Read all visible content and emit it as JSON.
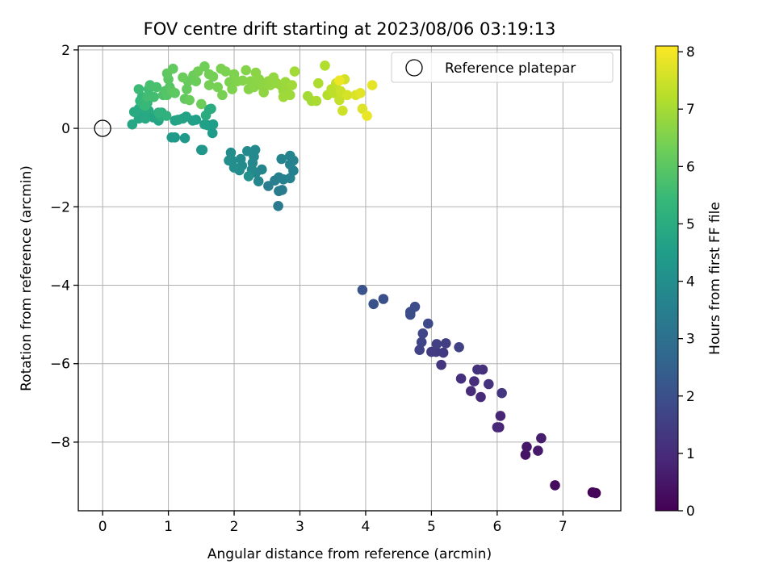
{
  "chart_data": {
    "type": "scatter",
    "title": "FOV centre drift starting at 2023/08/06 03:19:13",
    "xlabel": "Angular distance from reference (arcmin)",
    "ylabel": "Rotation from reference (arcmin)",
    "colorbar_label": "Hours from first FF file",
    "colormap": "viridis",
    "xlim": [
      -0.37,
      7.88
    ],
    "ylim": [
      -9.75,
      2.1
    ],
    "clim": [
      0,
      8.1
    ],
    "x_ticks": [
      0,
      1,
      2,
      3,
      4,
      5,
      6,
      7
    ],
    "y_ticks": [
      -8,
      -6,
      -4,
      -2,
      0,
      2
    ],
    "colorbar_ticks": [
      0,
      1,
      2,
      3,
      4,
      5,
      6,
      7,
      8
    ],
    "grid": true,
    "legend": {
      "position": "top-right",
      "label": "Reference platepar"
    },
    "reference": {
      "x": 0,
      "y": 0,
      "color": "#000000"
    },
    "points": [
      [
        7.5,
        -9.3,
        0.05
      ],
      [
        7.45,
        -9.28,
        0.1
      ],
      [
        6.88,
        -9.1,
        0.25
      ],
      [
        6.43,
        -8.32,
        0.4
      ],
      [
        6.45,
        -8.12,
        0.5
      ],
      [
        6.62,
        -8.22,
        0.55
      ],
      [
        6.67,
        -7.9,
        0.65
      ],
      [
        6.03,
        -7.62,
        0.8
      ],
      [
        6.05,
        -7.33,
        0.85
      ],
      [
        6.0,
        -7.62,
        0.9
      ],
      [
        5.75,
        -6.85,
        0.95
      ],
      [
        5.6,
        -6.7,
        1.0
      ],
      [
        5.65,
        -6.45,
        1.05
      ],
      [
        5.45,
        -6.38,
        1.1
      ],
      [
        5.78,
        -6.15,
        1.12
      ],
      [
        5.7,
        -6.15,
        1.18
      ],
      [
        5.87,
        -6.52,
        1.2
      ],
      [
        6.07,
        -6.75,
        1.25
      ],
      [
        5.15,
        -6.03,
        1.3
      ],
      [
        5.07,
        -5.7,
        1.35
      ],
      [
        5.18,
        -5.72,
        1.4
      ],
      [
        5.0,
        -5.7,
        1.45
      ],
      [
        5.22,
        -5.48,
        1.5
      ],
      [
        5.08,
        -5.5,
        1.55
      ],
      [
        5.42,
        -5.58,
        1.6
      ],
      [
        4.82,
        -5.65,
        1.65
      ],
      [
        4.85,
        -5.45,
        1.7
      ],
      [
        4.87,
        -5.23,
        1.75
      ],
      [
        4.95,
        -4.98,
        1.8
      ],
      [
        4.68,
        -4.68,
        1.85
      ],
      [
        4.75,
        -4.55,
        1.9
      ],
      [
        4.68,
        -4.75,
        1.95
      ],
      [
        4.27,
        -4.35,
        2.0
      ],
      [
        4.12,
        -4.48,
        2.05
      ],
      [
        3.95,
        -4.12,
        2.1
      ],
      [
        2.67,
        -1.98,
        3.3
      ],
      [
        2.68,
        -1.6,
        3.35
      ],
      [
        2.73,
        -1.57,
        3.38
      ],
      [
        2.62,
        -1.33,
        3.42
      ],
      [
        2.52,
        -1.47,
        3.45
      ],
      [
        2.68,
        -1.25,
        3.5
      ],
      [
        2.75,
        -1.3,
        3.52
      ],
      [
        2.85,
        -1.27,
        3.55
      ],
      [
        2.9,
        -1.08,
        3.58
      ],
      [
        2.85,
        -0.92,
        3.6
      ],
      [
        2.9,
        -0.82,
        3.62
      ],
      [
        2.85,
        -0.7,
        3.65
      ],
      [
        2.72,
        -0.78,
        3.68
      ],
      [
        2.42,
        -1.05,
        3.7
      ],
      [
        2.37,
        -1.35,
        3.72
      ],
      [
        2.33,
        -1.13,
        3.75
      ],
      [
        2.27,
        -1.05,
        3.78
      ],
      [
        2.28,
        -0.88,
        3.8
      ],
      [
        2.3,
        -0.72,
        3.82
      ],
      [
        2.32,
        -0.55,
        3.84
      ],
      [
        2.2,
        -0.58,
        3.86
      ],
      [
        2.1,
        -0.78,
        3.88
      ],
      [
        2.12,
        -0.95,
        3.9
      ],
      [
        2.08,
        -1.07,
        3.92
      ],
      [
        1.97,
        -0.82,
        3.94
      ],
      [
        1.95,
        -0.62,
        3.96
      ],
      [
        1.92,
        -0.82,
        3.98
      ],
      [
        2.0,
        -1.0,
        4.0
      ],
      [
        2.22,
        -1.22,
        4.05
      ],
      [
        1.5,
        -0.55,
        4.2
      ],
      [
        1.52,
        -0.55,
        4.25
      ],
      [
        1.1,
        -0.23,
        4.3
      ],
      [
        1.25,
        -0.25,
        4.35
      ],
      [
        1.05,
        -0.23,
        4.4
      ],
      [
        1.67,
        -0.12,
        4.45
      ],
      [
        1.6,
        0.08,
        4.5
      ],
      [
        1.68,
        0.1,
        4.52
      ],
      [
        1.42,
        0.22,
        4.55
      ],
      [
        1.55,
        0.1,
        4.58
      ],
      [
        1.37,
        0.2,
        4.6
      ],
      [
        1.27,
        0.3,
        4.62
      ],
      [
        1.22,
        0.25,
        4.65
      ],
      [
        1.1,
        0.2,
        4.68
      ],
      [
        1.15,
        0.22,
        4.7
      ],
      [
        0.85,
        0.2,
        4.72
      ],
      [
        0.77,
        0.28,
        4.74
      ],
      [
        0.72,
        0.35,
        4.76
      ],
      [
        0.57,
        0.28,
        4.78
      ],
      [
        0.45,
        0.1,
        4.8
      ],
      [
        0.55,
        0.25,
        4.82
      ],
      [
        0.62,
        0.32,
        4.84
      ],
      [
        0.65,
        0.25,
        4.86
      ],
      [
        0.7,
        0.45,
        4.88
      ],
      [
        0.62,
        0.48,
        4.9
      ],
      [
        0.55,
        0.5,
        4.92
      ],
      [
        0.48,
        0.42,
        4.94
      ],
      [
        1.57,
        0.33,
        4.96
      ],
      [
        1.62,
        0.48,
        4.98
      ],
      [
        1.65,
        0.5,
        5.0
      ],
      [
        0.88,
        0.3,
        5.05
      ],
      [
        0.9,
        0.4,
        5.1
      ],
      [
        0.97,
        0.32,
        5.15
      ],
      [
        0.85,
        0.4,
        5.2
      ],
      [
        0.62,
        0.6,
        5.25
      ],
      [
        0.68,
        0.65,
        5.3
      ],
      [
        0.57,
        0.7,
        5.35
      ],
      [
        0.6,
        0.8,
        5.4
      ],
      [
        0.65,
        0.58,
        5.45
      ],
      [
        0.55,
        1.0,
        5.5
      ],
      [
        0.7,
        1.0,
        5.55
      ],
      [
        0.68,
        0.8,
        5.6
      ],
      [
        0.78,
        0.8,
        5.65
      ],
      [
        0.72,
        1.1,
        5.7
      ],
      [
        0.82,
        1.05,
        5.75
      ],
      [
        0.92,
        0.85,
        5.8
      ],
      [
        0.95,
        0.95,
        5.85
      ],
      [
        0.98,
        0.85,
        5.9
      ],
      [
        1.02,
        1.05,
        5.95
      ],
      [
        1.05,
        0.95,
        6.0
      ],
      [
        1.0,
        1.25,
        6.02
      ],
      [
        1.1,
        0.9,
        6.05
      ],
      [
        0.98,
        1.4,
        6.08
      ],
      [
        1.07,
        1.52,
        6.1
      ],
      [
        1.25,
        0.75,
        6.12
      ],
      [
        1.28,
        1.0,
        6.15
      ],
      [
        1.3,
        1.2,
        6.18
      ],
      [
        1.32,
        0.72,
        6.2
      ],
      [
        1.38,
        1.35,
        6.22
      ],
      [
        1.22,
        1.3,
        6.24
      ],
      [
        1.42,
        1.2,
        6.26
      ],
      [
        1.5,
        0.62,
        6.28
      ],
      [
        1.55,
        1.58,
        6.3
      ],
      [
        1.45,
        1.45,
        6.32
      ],
      [
        1.62,
        1.38,
        6.34
      ],
      [
        1.68,
        1.32,
        6.36
      ],
      [
        1.62,
        1.1,
        6.38
      ],
      [
        1.75,
        1.05,
        6.4
      ],
      [
        1.82,
        0.85,
        6.42
      ],
      [
        1.8,
        1.52,
        6.44
      ],
      [
        1.87,
        1.45,
        6.46
      ],
      [
        1.93,
        1.18,
        6.48
      ],
      [
        1.97,
        1.0,
        6.5
      ],
      [
        2.0,
        1.38,
        6.52
      ],
      [
        2.05,
        1.2,
        6.54
      ],
      [
        2.13,
        1.22,
        6.56
      ],
      [
        2.18,
        1.48,
        6.58
      ],
      [
        2.22,
        1.0,
        6.6
      ],
      [
        2.25,
        1.2,
        6.62
      ],
      [
        2.3,
        1.05,
        6.64
      ],
      [
        2.33,
        1.42,
        6.66
      ],
      [
        2.38,
        1.25,
        6.68
      ],
      [
        2.42,
        1.08,
        6.7
      ],
      [
        2.45,
        0.92,
        6.72
      ],
      [
        2.52,
        1.2,
        6.74
      ],
      [
        2.55,
        1.1,
        6.76
      ],
      [
        2.6,
        1.3,
        6.78
      ],
      [
        2.65,
        1.15,
        6.8
      ],
      [
        2.72,
        1.08,
        6.82
      ],
      [
        2.75,
        0.95,
        6.84
      ],
      [
        2.78,
        1.18,
        6.86
      ],
      [
        2.8,
        1.05,
        6.88
      ],
      [
        2.85,
        0.85,
        6.9
      ],
      [
        2.75,
        0.8,
        6.92
      ],
      [
        2.88,
        1.1,
        6.94
      ],
      [
        2.92,
        1.45,
        6.96
      ],
      [
        3.12,
        0.82,
        6.98
      ],
      [
        3.18,
        0.7,
        7.0
      ],
      [
        3.25,
        0.7,
        7.05
      ],
      [
        3.28,
        1.15,
        7.1
      ],
      [
        3.38,
        1.6,
        7.15
      ],
      [
        3.42,
        0.85,
        7.2
      ],
      [
        3.48,
        1.0,
        7.25
      ],
      [
        3.52,
        0.9,
        7.3
      ],
      [
        3.55,
        1.15,
        7.35
      ],
      [
        3.6,
        0.72,
        7.4
      ],
      [
        3.62,
        0.95,
        7.45
      ],
      [
        3.65,
        0.45,
        7.5
      ],
      [
        3.68,
        1.25,
        7.55
      ],
      [
        3.72,
        0.85,
        7.6
      ],
      [
        3.85,
        0.85,
        7.65
      ],
      [
        3.95,
        0.5,
        7.7
      ],
      [
        3.92,
        0.9,
        7.75
      ],
      [
        4.1,
        1.1,
        7.8
      ],
      [
        4.02,
        0.32,
        7.85
      ],
      [
        3.6,
        1.22,
        7.9
      ]
    ]
  }
}
